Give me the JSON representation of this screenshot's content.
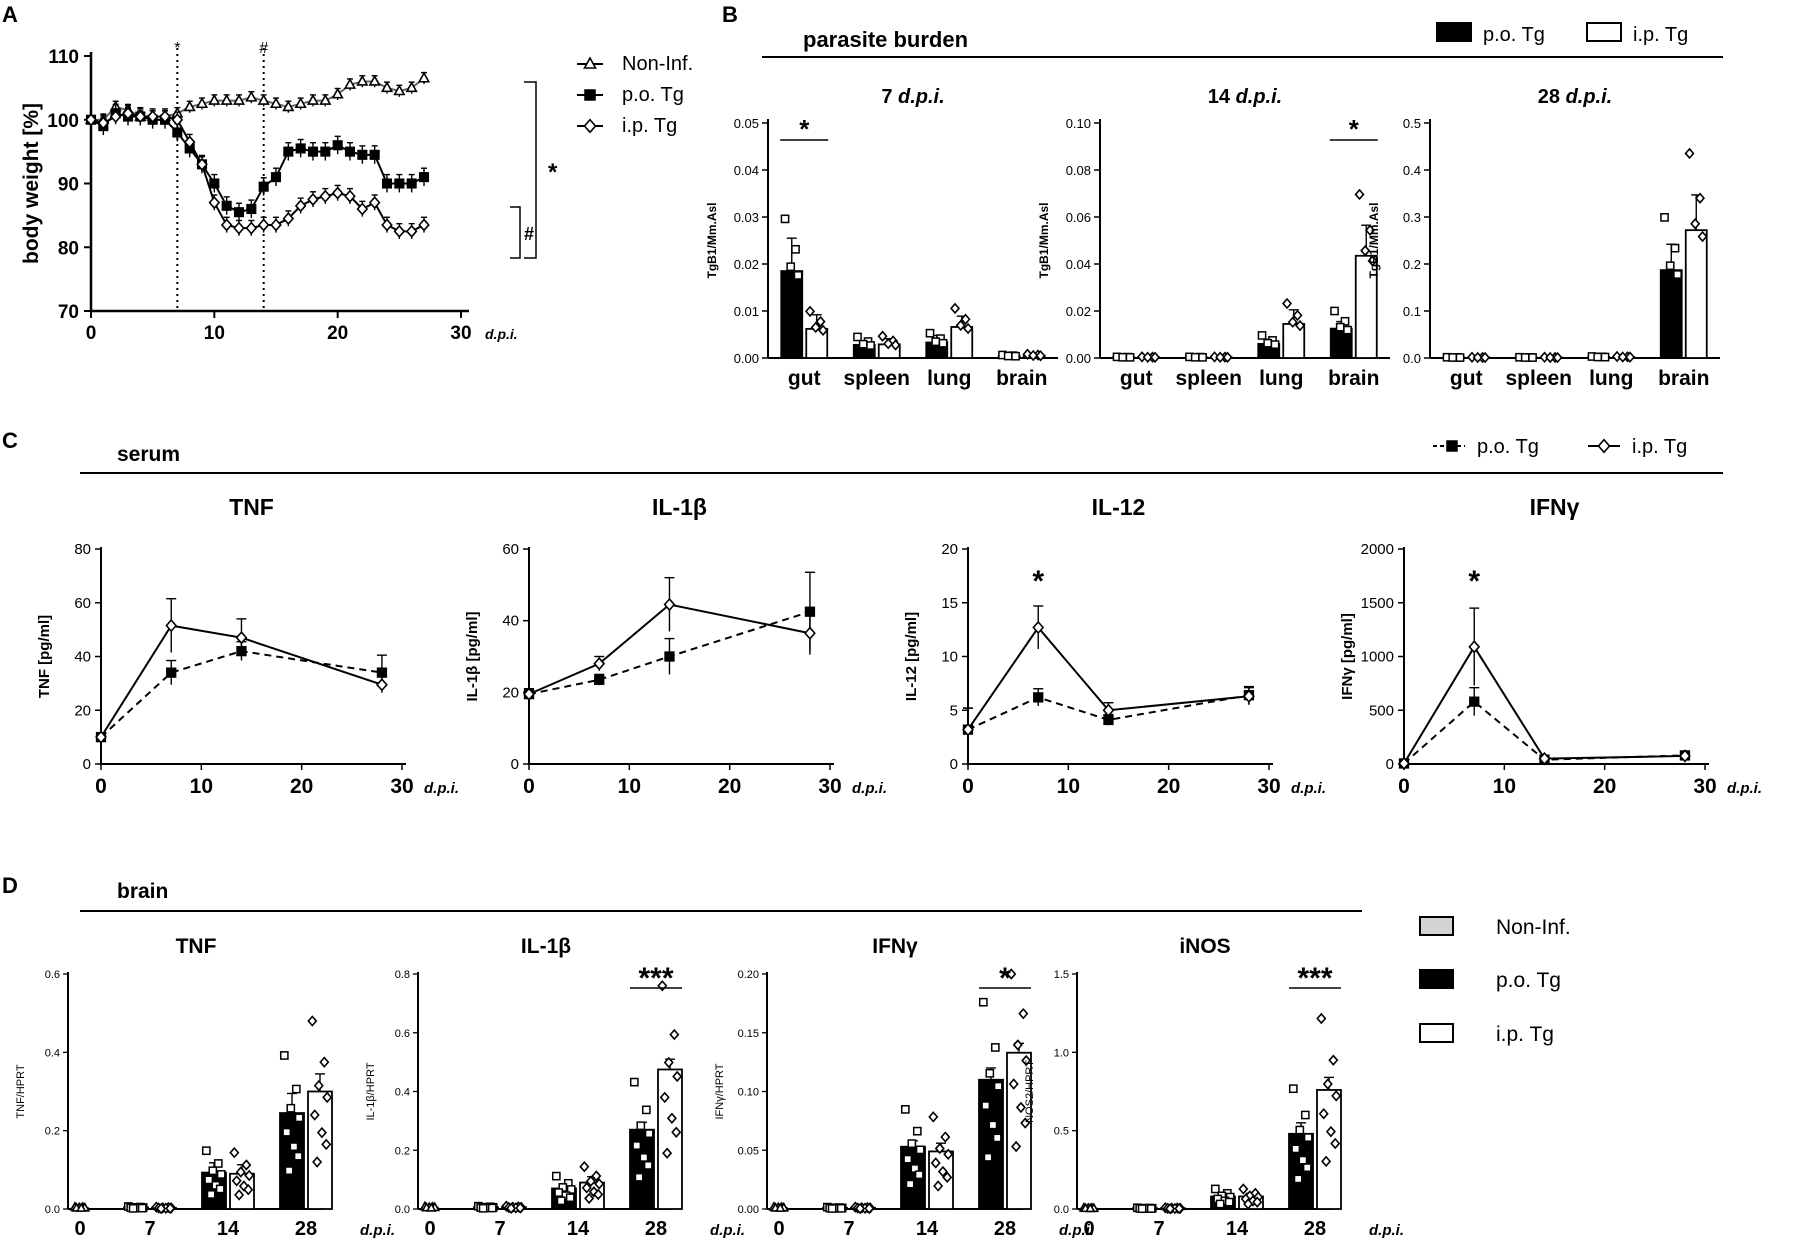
{
  "panels": {
    "A": "A",
    "B": "B",
    "C": "C",
    "D": "D"
  },
  "chart_data": [
    {
      "id": "A",
      "type": "line",
      "title": "",
      "xlabel": "d.p.i.",
      "ylabel": "body weight [%]",
      "xlim": [
        0,
        30
      ],
      "ylim": [
        70,
        110
      ],
      "xticks": [
        "0",
        "10",
        "20",
        "30"
      ],
      "yticks": [
        "70",
        "80",
        "90",
        "100",
        "110"
      ],
      "vlines": [
        {
          "x": 7,
          "label": "*"
        },
        {
          "x": 14,
          "label": "#"
        }
      ],
      "significance": [
        "*",
        "#"
      ],
      "legend": [
        "Non-Inf.",
        "p.o. Tg",
        "i.p. Tg"
      ],
      "x": [
        0,
        1,
        2,
        3,
        4,
        5,
        6,
        7,
        8,
        9,
        10,
        11,
        12,
        13,
        14,
        15,
        16,
        17,
        18,
        19,
        20,
        21,
        22,
        23,
        24,
        25,
        26,
        27
      ],
      "series": [
        {
          "name": "Non-Inf.",
          "values": [
            100,
            100,
            102,
            101.5,
            100.5,
            100.5,
            100.5,
            101,
            102,
            102.5,
            103,
            103,
            103,
            103.5,
            103,
            102.5,
            102,
            102.5,
            103,
            103,
            104,
            105.5,
            106,
            106,
            105,
            104.5,
            105,
            106.5
          ]
        },
        {
          "name": "p.o. Tg",
          "values": [
            100,
            99,
            101,
            100.5,
            100.5,
            100,
            100,
            98,
            95.5,
            93,
            90,
            86.5,
            85.5,
            86,
            89.5,
            91,
            95,
            95.5,
            95,
            95,
            96,
            95,
            94.5,
            94.5,
            90,
            90,
            90,
            91
          ]
        },
        {
          "name": "i.p. Tg",
          "values": [
            100,
            99.5,
            100.5,
            101,
            100.5,
            100.5,
            100.5,
            100,
            96.5,
            93,
            87,
            83.5,
            83,
            83,
            83.5,
            83.5,
            84.5,
            86.5,
            87.5,
            88,
            88.5,
            88,
            86,
            87,
            83.5,
            82.5,
            82.5,
            83.5
          ]
        }
      ]
    },
    {
      "id": "B",
      "type": "bar",
      "heading": "parasite burden",
      "legend": [
        "p.o. Tg",
        "i.p. Tg"
      ],
      "ylabel": "TgB1/Mm.Asl",
      "categories": [
        "gut",
        "spleen",
        "lung",
        "brain"
      ],
      "subplots": [
        {
          "title": "7",
          "title_unit": "d.p.i.",
          "ylim": [
            0,
            0.05
          ],
          "yticks": [
            "0.00",
            "0.01",
            "0.02",
            "0.03",
            "0.04",
            "0.05"
          ],
          "series": [
            {
              "name": "p.o. Tg",
              "values": [
                0.0185,
                0.0028,
                0.0033,
                0.0004
              ]
            },
            {
              "name": "i.p. Tg",
              "values": [
                0.0062,
                0.0029,
                0.0066,
                0.0005
              ]
            }
          ],
          "errors": [
            {
              "name": "p.o. Tg",
              "values": [
                0.007,
                0.0008,
                0.0015,
                0.0001
              ]
            },
            {
              "name": "i.p. Tg",
              "values": [
                0.003,
                0.0012,
                0.0023,
                0.0001
              ]
            }
          ],
          "significance": [
            {
              "category": "gut",
              "label": "*"
            }
          ]
        },
        {
          "title": "14",
          "title_unit": "d.p.i.",
          "ylim": [
            0,
            0.1
          ],
          "yticks": [
            "0.00",
            "0.02",
            "0.04",
            "0.06",
            "0.08",
            "0.10"
          ],
          "series": [
            {
              "name": "p.o. Tg",
              "values": [
                0.0003,
                0.0003,
                0.006,
                0.0125
              ]
            },
            {
              "name": "i.p. Tg",
              "values": [
                0.0003,
                0.0003,
                0.0145,
                0.0435
              ]
            }
          ],
          "errors": [
            {
              "name": "p.o. Tg",
              "values": [
                0.0001,
                0.0001,
                0.002,
                0.003
              ]
            },
            {
              "name": "i.p. Tg",
              "values": [
                0.0001,
                0.0001,
                0.006,
                0.013
              ]
            }
          ],
          "significance": [
            {
              "category": "brain",
              "label": "*"
            }
          ]
        },
        {
          "title": "28",
          "title_unit": "d.p.i.",
          "ylim": [
            0,
            0.5
          ],
          "yticks": [
            "0.0",
            "0.1",
            "0.2",
            "0.3",
            "0.4",
            "0.5"
          ],
          "series": [
            {
              "name": "p.o. Tg",
              "values": [
                0.001,
                0.001,
                0.002,
                0.187
              ]
            },
            {
              "name": "i.p. Tg",
              "values": [
                0.001,
                0.001,
                0.002,
                0.272
              ]
            }
          ],
          "errors": [
            {
              "name": "p.o. Tg",
              "values": [
                0.0005,
                0.0005,
                0.001,
                0.055
              ]
            },
            {
              "name": "i.p. Tg",
              "values": [
                0.0005,
                0.0005,
                0.001,
                0.075
              ]
            }
          ],
          "significance": []
        }
      ]
    },
    {
      "id": "C",
      "type": "line",
      "heading": "serum",
      "legend": [
        "p.o. Tg",
        "i.p. Tg"
      ],
      "xlabel": "d.p.i.",
      "x": [
        0,
        7,
        14,
        28
      ],
      "xticks": [
        "0",
        "10",
        "20",
        "30"
      ],
      "subplots": [
        {
          "title": "TNF",
          "ylabel": "TNF [pg/ml]",
          "ylim": [
            0,
            80
          ],
          "yticks": [
            "0",
            "20",
            "40",
            "60",
            "80"
          ],
          "series": [
            {
              "name": "p.o. Tg",
              "values": [
                10,
                34,
                42,
                34
              ],
              "errors": [
                1,
                4.5,
                3.5,
                6.5
              ]
            },
            {
              "name": "i.p. Tg",
              "values": [
                10,
                51.5,
                47,
                29.5
              ],
              "errors": [
                1,
                10,
                7,
                3
              ]
            }
          ],
          "significance": []
        },
        {
          "title": "IL-1β",
          "ylabel": "IL-1β [pg/ml]",
          "ylim": [
            0,
            60
          ],
          "yticks": [
            "0",
            "20",
            "40",
            "60"
          ],
          "series": [
            {
              "name": "p.o. Tg",
              "values": [
                19.5,
                23.5,
                30,
                42.5
              ],
              "errors": [
                1.5,
                1.5,
                5,
                11
              ]
            },
            {
              "name": "i.p. Tg",
              "values": [
                19.5,
                28,
                44.5,
                36.5
              ],
              "errors": [
                1.5,
                2,
                7.5,
                6
              ]
            }
          ],
          "significance": []
        },
        {
          "title": "IL-12",
          "ylabel": "IL-12 [pg/ml]",
          "ylim": [
            0,
            20
          ],
          "yticks": [
            "0",
            "5",
            "10",
            "15",
            "20"
          ],
          "series": [
            {
              "name": "p.o. Tg",
              "values": [
                3.2,
                6.2,
                4.1,
                6.4
              ],
              "errors": [
                2,
                0.8,
                0.5,
                0.8
              ]
            },
            {
              "name": "i.p. Tg",
              "values": [
                3.2,
                12.7,
                5,
                6.3
              ],
              "errors": [
                2,
                2,
                0.7,
                0.8
              ]
            }
          ],
          "significance": [
            {
              "x": 7,
              "label": "*"
            }
          ]
        },
        {
          "title": "IFNγ",
          "ylabel": "IFNγ [pg/ml]",
          "ylim": [
            0,
            2000
          ],
          "yticks": [
            "0",
            "500",
            "1000",
            "1500",
            "2000"
          ],
          "series": [
            {
              "name": "p.o. Tg",
              "values": [
                5,
                580,
                40,
                80
              ],
              "errors": [
                3,
                130,
                20,
                15
              ]
            },
            {
              "name": "i.p. Tg",
              "values": [
                5,
                1090,
                50,
                75
              ],
              "errors": [
                3,
                360,
                20,
                15
              ]
            }
          ],
          "significance": [
            {
              "x": 7,
              "label": "*"
            }
          ]
        }
      ]
    },
    {
      "id": "D",
      "type": "bar",
      "heading": "brain",
      "legend": [
        "Non-Inf.",
        "p.o. Tg",
        "i.p. Tg"
      ],
      "categories": [
        "0",
        "7",
        "14",
        "28"
      ],
      "xlabel": "d.p.i.",
      "subplots": [
        {
          "title": "TNF",
          "ylabel": "TNF/HPRT",
          "ylim": [
            0,
            0.6
          ],
          "yticks": [
            "0.0",
            "0.2",
            "0.4",
            "0.6"
          ],
          "series": [
            {
              "name": "Non-Inf.",
              "values": [
                0.003,
                null,
                null,
                null
              ]
            },
            {
              "name": "p.o. Tg",
              "values": [
                null,
                0.004,
                0.093,
                0.245
              ]
            },
            {
              "name": "i.p. Tg",
              "values": [
                null,
                0.003,
                0.09,
                0.3
              ]
            }
          ],
          "errors": [
            {
              "name": "Non-Inf.",
              "values": [
                0.001,
                null,
                null,
                null
              ]
            },
            {
              "name": "p.o. Tg",
              "values": [
                null,
                0.001,
                0.025,
                0.05
              ]
            },
            {
              "name": "i.p. Tg",
              "values": [
                null,
                0.001,
                0.023,
                0.045
              ]
            }
          ],
          "significance": ""
        },
        {
          "title": "IL-1β",
          "ylabel": "IL-1β/HPRT",
          "ylim": [
            0,
            0.8
          ],
          "yticks": [
            "0.0",
            "0.2",
            "0.4",
            "0.6",
            "0.8"
          ],
          "series": [
            {
              "name": "Non-Inf.",
              "values": [
                0.005,
                null,
                null,
                null
              ]
            },
            {
              "name": "p.o. Tg",
              "values": [
                null,
                0.006,
                0.07,
                0.27
              ]
            },
            {
              "name": "i.p. Tg",
              "values": [
                null,
                0.006,
                0.09,
                0.475
              ]
            }
          ],
          "errors": [
            {
              "name": "Non-Inf.",
              "values": [
                0.002,
                null,
                null,
                null
              ]
            },
            {
              "name": "p.o. Tg",
              "values": [
                null,
                0.002,
                0.015,
                0.025
              ]
            },
            {
              "name": "i.p. Tg",
              "values": [
                null,
                0.002,
                0.02,
                0.035
              ]
            }
          ],
          "significance": "***"
        },
        {
          "title": "IFNγ",
          "ylabel": "IFNγ/HPRT",
          "ylim": [
            0,
            0.2
          ],
          "yticks": [
            "0.00",
            "0.05",
            "0.10",
            "0.15",
            "0.20"
          ],
          "series": [
            {
              "name": "Non-Inf.",
              "values": [
                0.001,
                null,
                null,
                null
              ]
            },
            {
              "name": "p.o. Tg",
              "values": [
                null,
                0.001,
                0.053,
                0.11
              ]
            },
            {
              "name": "i.p. Tg",
              "values": [
                null,
                0.001,
                0.049,
                0.133
              ]
            }
          ],
          "errors": [
            {
              "name": "Non-Inf.",
              "values": [
                0.0005,
                null,
                null,
                null
              ]
            },
            {
              "name": "p.o. Tg",
              "values": [
                null,
                0.0005,
                0.005,
                0.01
              ]
            },
            {
              "name": "i.p. Tg",
              "values": [
                null,
                0.0005,
                0.007,
                0.008
              ]
            }
          ],
          "significance": "*"
        },
        {
          "title": "iNOS",
          "ylabel": "NOS2/HPRT",
          "ylim": [
            0,
            1.5
          ],
          "yticks": [
            "0.0",
            "0.5",
            "1.0",
            "1.5"
          ],
          "series": [
            {
              "name": "Non-Inf.",
              "values": [
                0.004,
                null,
                null,
                null
              ]
            },
            {
              "name": "p.o. Tg",
              "values": [
                null,
                0.005,
                0.08,
                0.48
              ]
            },
            {
              "name": "i.p. Tg",
              "values": [
                null,
                0.005,
                0.08,
                0.76
              ]
            }
          ],
          "errors": [
            {
              "name": "Non-Inf.",
              "values": [
                0.002,
                null,
                null,
                null
              ]
            },
            {
              "name": "p.o. Tg",
              "values": [
                null,
                0.002,
                0.015,
                0.07
              ]
            },
            {
              "name": "i.p. Tg",
              "values": [
                null,
                0.002,
                0.02,
                0.08
              ]
            }
          ],
          "significance": "***"
        }
      ]
    }
  ]
}
